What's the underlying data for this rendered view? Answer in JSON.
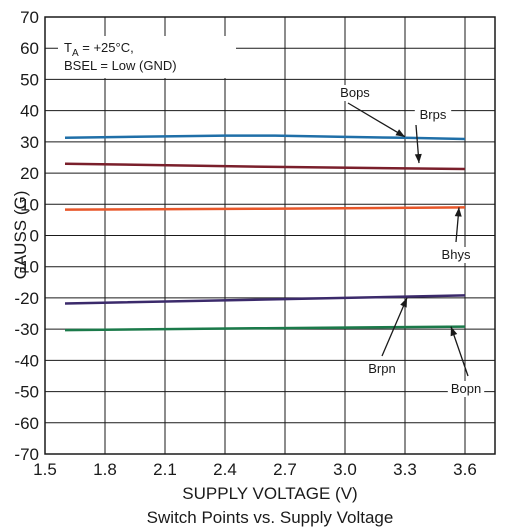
{
  "chart_data": {
    "type": "line",
    "title": "Switch Points vs. Supply Voltage",
    "xlabel": "SUPPLY VOLTAGE (V)",
    "ylabel": "GAUSS (G)",
    "xlim": [
      1.5,
      3.75
    ],
    "ylim": [
      -70,
      70
    ],
    "x_ticks": [
      "1.5",
      "1.8",
      "2.1",
      "2.4",
      "2.7",
      "3.0",
      "3.3",
      "3.6"
    ],
    "y_ticks": [
      "70",
      "60",
      "50",
      "40",
      "30",
      "20",
      "10",
      "0",
      "-10",
      "-20",
      "-30",
      "-40",
      "-50",
      "-60",
      "-70"
    ],
    "grid": true,
    "conditions": {
      "line1_main": "T",
      "line1_sub": "A",
      "line1_rest": " = +25°C,",
      "line2": "BSEL = Low (GND)"
    },
    "series": [
      {
        "name": "Bops",
        "color": "#1f6fa8",
        "x": [
          1.6,
          2.0,
          2.4,
          2.65,
          3.0,
          3.3,
          3.6
        ],
        "y": [
          31.3,
          31.7,
          32.0,
          32.0,
          31.6,
          31.3,
          30.9
        ]
      },
      {
        "name": "Brps",
        "color": "#7a1f2b",
        "x": [
          1.6,
          2.6,
          3.6
        ],
        "y": [
          23.0,
          22.0,
          21.3
        ]
      },
      {
        "name": "Bhys",
        "color": "#e8572a",
        "x": [
          1.6,
          2.6,
          3.6
        ],
        "y": [
          8.3,
          8.6,
          9.0
        ]
      },
      {
        "name": "Brpn",
        "color": "#3b2a6b",
        "x": [
          1.6,
          2.6,
          3.6
        ],
        "y": [
          -21.8,
          -20.5,
          -19.2
        ]
      },
      {
        "name": "Bopn",
        "color": "#1b7a4a",
        "x": [
          1.6,
          2.6,
          3.6
        ],
        "y": [
          -30.3,
          -29.7,
          -29.2
        ]
      }
    ],
    "annotations": [
      {
        "text": "Bops",
        "series": "Bops",
        "at_x": 3.3,
        "at_y": 31.6
      },
      {
        "text": "Brps",
        "series": "Brps",
        "at_x": 3.37,
        "at_y": 23.2
      },
      {
        "text": "Bhys",
        "series": "Bhys",
        "at_x": 3.57,
        "at_y": 9.0
      },
      {
        "text": "Brpn",
        "series": "Brpn",
        "at_x": 3.31,
        "at_y": -20.0
      },
      {
        "text": "Bopn",
        "series": "Bopn",
        "at_x": 3.53,
        "at_y": -29.2
      }
    ]
  }
}
